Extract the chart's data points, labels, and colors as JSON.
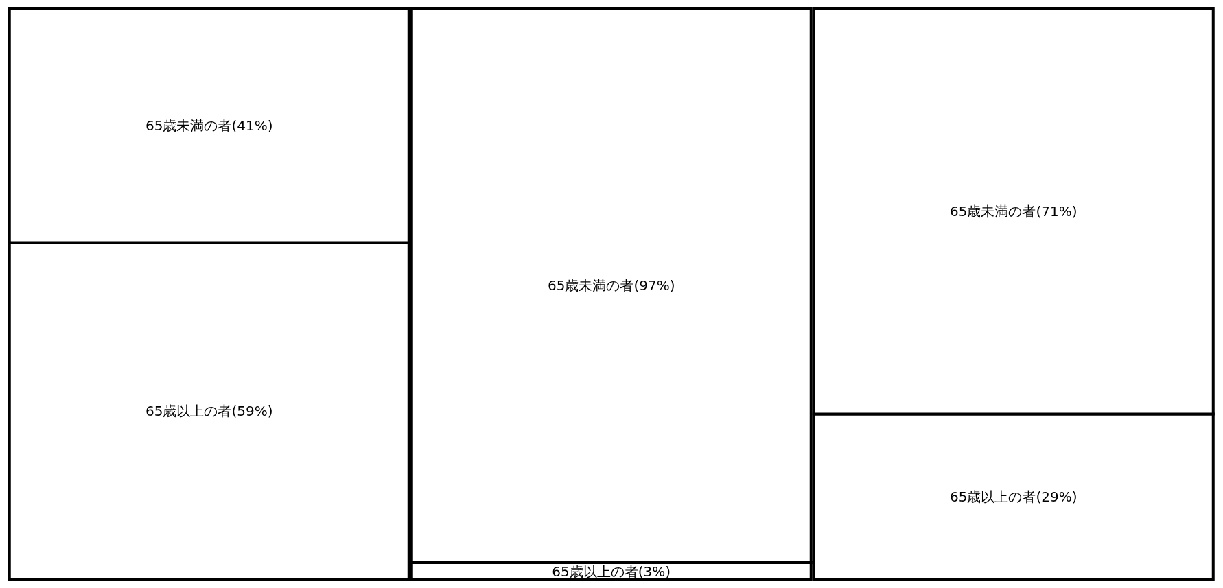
{
  "chart_data": {
    "type": "bar",
    "stacked": true,
    "categories": [
      null,
      null,
      null
    ],
    "tick_labels": false,
    "grid": false,
    "legend": false,
    "series": [
      {
        "color": "#ffffff",
        "values": [
          59,
          3,
          29
        ],
        "value_labels": [
          "65歳以上の者(59%)",
          "65歳以上の者(3%)",
          "65歳以上の者(29%)"
        ]
      },
      {
        "color": "#ffffff",
        "values": [
          41,
          97,
          71
        ],
        "value_labels": [
          "65歳未満の者(41%)",
          "65歳未満の者(97%)",
          "65歳未満の者(71%)"
        ]
      }
    ]
  }
}
